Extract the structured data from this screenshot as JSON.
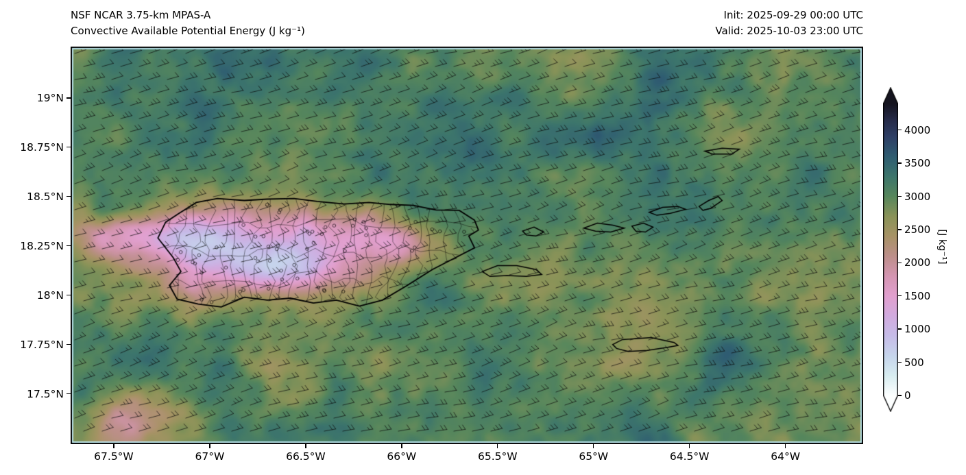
{
  "header": {
    "title_line1": "NSF NCAR 3.75-km MPAS-A",
    "title_line2": "Convective Available Potential Energy (J kg⁻¹)",
    "init_label": "Init: 2025-09-29 00:00 UTC",
    "valid_label": "Valid: 2025-10-03 23:00 UTC"
  },
  "chart_data": {
    "type": "heatmap",
    "title": "Convective Available Potential Energy (J kg⁻¹)",
    "model": "NSF NCAR 3.75-km MPAS-A",
    "init_time": "2025-09-29 00:00 UTC",
    "valid_time": "2025-10-03 23:00 UTC",
    "variable": "Convective Available Potential Energy",
    "units": "J kg⁻¹",
    "region": "Puerto Rico and Virgin Islands",
    "x_axis": {
      "tick_labels": [
        "67.5°W",
        "67°W",
        "66.5°W",
        "66°W",
        "65.5°W",
        "65°W",
        "64.5°W",
        "64°W"
      ],
      "tick_lons": [
        -67.5,
        -67,
        -66.5,
        -66,
        -65.5,
        -65,
        -64.5,
        -64
      ],
      "range_lon": [
        -67.725,
        -63.595
      ]
    },
    "y_axis": {
      "tick_labels": [
        "19°N",
        "18.75°N",
        "18.5°N",
        "18.25°N",
        "18°N",
        "17.75°N",
        "17.5°N"
      ],
      "tick_lats": [
        19,
        18.75,
        18.5,
        18.25,
        18,
        17.75,
        17.5
      ],
      "range_lat": [
        17.245,
        19.26
      ]
    },
    "colorbar": {
      "label": "[J kg⁻¹]",
      "tick_values": [
        0,
        500,
        1000,
        1500,
        2000,
        2500,
        3000,
        3500,
        4000
      ],
      "range": [
        0,
        4400
      ],
      "extend": "both",
      "stops": [
        [
          0,
          "#fdffff"
        ],
        [
          300,
          "#d8edf1"
        ],
        [
          600,
          "#c6d5ec"
        ],
        [
          900,
          "#c6bce8"
        ],
        [
          1200,
          "#d2abdf"
        ],
        [
          1500,
          "#e2a0cf"
        ],
        [
          1800,
          "#d596b2"
        ],
        [
          2100,
          "#bd8f8a"
        ],
        [
          2400,
          "#a89366"
        ],
        [
          2700,
          "#8a9358"
        ],
        [
          3000,
          "#57875c"
        ],
        [
          3300,
          "#3d766c"
        ],
        [
          3600,
          "#2f5d72"
        ],
        [
          3900,
          "#2e3f66"
        ],
        [
          4150,
          "#262b49"
        ],
        [
          4400,
          "#15141f"
        ]
      ]
    },
    "field": {
      "background_mean_jkg": 3000,
      "description": "Mottled 2500–3500 J/kg CAPE over open ocean; reduced CAPE (700–2000 J/kg, pink/lavender shades) over Puerto Rico interior and just west of the island.",
      "low_cape_regions": [
        {
          "lon": -66.55,
          "lat": 18.21,
          "sx": 0.48,
          "sy": 0.165,
          "drop": 1450
        },
        {
          "lon": -66.98,
          "lat": 18.27,
          "sx": 0.28,
          "sy": 0.13,
          "drop": 1050
        },
        {
          "lon": -66.62,
          "lat": 18.12,
          "sx": 0.17,
          "sy": 0.075,
          "drop": 850
        },
        {
          "lon": -67.44,
          "lat": 18.3,
          "sx": 0.24,
          "sy": 0.075,
          "drop": 1150
        },
        {
          "lon": -66.03,
          "lat": 18.28,
          "sx": 0.13,
          "sy": 0.075,
          "drop": 750
        },
        {
          "lon": -66.33,
          "lat": 18.33,
          "sx": 0.18,
          "sy": 0.09,
          "drop": 600
        },
        {
          "lon": -67.35,
          "lat": 17.38,
          "sx": 0.2,
          "sy": 0.12,
          "drop": 700
        }
      ]
    },
    "wind_barbs": {
      "direction": "easterly",
      "speed_kt": "10-20",
      "col_spacing": 27,
      "row_spacing": 19,
      "staff_length": 17
    },
    "overlays": [
      "wind barbs",
      "coastlines",
      "municipal boundaries",
      "station markers"
    ],
    "coastlines": {
      "interior_boundary_count": 24,
      "station_marker_count": 64,
      "puerto_rico": [
        [
          -67.16,
          18.415
        ],
        [
          -67.07,
          18.47
        ],
        [
          -66.96,
          18.49
        ],
        [
          -66.82,
          18.48
        ],
        [
          -66.7,
          18.487
        ],
        [
          -66.56,
          18.49
        ],
        [
          -66.44,
          18.475
        ],
        [
          -66.3,
          18.462
        ],
        [
          -66.17,
          18.47
        ],
        [
          -66.06,
          18.46
        ],
        [
          -65.94,
          18.455
        ],
        [
          -65.82,
          18.432
        ],
        [
          -65.7,
          18.43
        ],
        [
          -65.62,
          18.38
        ],
        [
          -65.6,
          18.33
        ],
        [
          -65.65,
          18.3
        ],
        [
          -65.62,
          18.24
        ],
        [
          -65.72,
          18.19
        ],
        [
          -65.84,
          18.13
        ],
        [
          -65.97,
          18.05
        ],
        [
          -66.1,
          17.975
        ],
        [
          -66.22,
          17.945
        ],
        [
          -66.34,
          17.975
        ],
        [
          -66.46,
          17.96
        ],
        [
          -66.58,
          17.985
        ],
        [
          -66.7,
          17.975
        ],
        [
          -66.82,
          17.99
        ],
        [
          -66.94,
          17.94
        ],
        [
          -67.06,
          17.955
        ],
        [
          -67.17,
          17.98
        ],
        [
          -67.21,
          18.05
        ],
        [
          -67.15,
          18.12
        ],
        [
          -67.19,
          18.19
        ],
        [
          -67.27,
          18.29
        ],
        [
          -67.23,
          18.37
        ]
      ],
      "vieques": [
        [
          -65.58,
          18.12
        ],
        [
          -65.5,
          18.15
        ],
        [
          -65.4,
          18.15
        ],
        [
          -65.3,
          18.13
        ],
        [
          -65.27,
          18.105
        ],
        [
          -65.35,
          18.095
        ],
        [
          -65.45,
          18.1
        ],
        [
          -65.54,
          18.095
        ]
      ],
      "culebra": [
        [
          -65.37,
          18.325
        ],
        [
          -65.31,
          18.345
        ],
        [
          -65.26,
          18.32
        ],
        [
          -65.3,
          18.3
        ],
        [
          -65.35,
          18.305
        ]
      ],
      "st_thomas": [
        [
          -65.05,
          18.34
        ],
        [
          -64.98,
          18.365
        ],
        [
          -64.9,
          18.355
        ],
        [
          -64.84,
          18.34
        ],
        [
          -64.91,
          18.32
        ],
        [
          -64.99,
          18.325
        ]
      ],
      "st_john": [
        [
          -64.8,
          18.35
        ],
        [
          -64.74,
          18.365
        ],
        [
          -64.69,
          18.345
        ],
        [
          -64.73,
          18.32
        ],
        [
          -64.78,
          18.325
        ]
      ],
      "tortola": [
        [
          -64.71,
          18.42
        ],
        [
          -64.64,
          18.445
        ],
        [
          -64.56,
          18.45
        ],
        [
          -64.52,
          18.435
        ],
        [
          -64.6,
          18.415
        ],
        [
          -64.67,
          18.405
        ]
      ],
      "virgin_gorda": [
        [
          -64.45,
          18.45
        ],
        [
          -64.4,
          18.48
        ],
        [
          -64.35,
          18.5
        ],
        [
          -64.33,
          18.48
        ],
        [
          -64.39,
          18.44
        ],
        [
          -64.43,
          18.43
        ]
      ],
      "anegada": [
        [
          -64.42,
          18.73
        ],
        [
          -64.33,
          18.745
        ],
        [
          -64.24,
          18.74
        ],
        [
          -64.28,
          18.715
        ],
        [
          -64.38,
          18.715
        ]
      ],
      "st_croix": [
        [
          -64.9,
          17.75
        ],
        [
          -64.85,
          17.775
        ],
        [
          -64.7,
          17.785
        ],
        [
          -64.58,
          17.76
        ],
        [
          -64.56,
          17.745
        ],
        [
          -64.62,
          17.735
        ],
        [
          -64.72,
          17.72
        ],
        [
          -64.82,
          17.715
        ],
        [
          -64.88,
          17.73
        ]
      ]
    }
  }
}
